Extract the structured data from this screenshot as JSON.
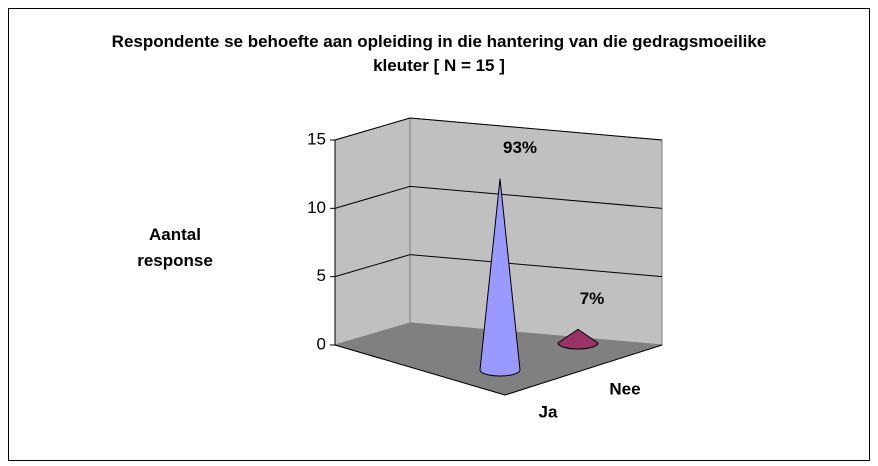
{
  "chart_data": {
    "type": "cone3d",
    "title": "Respondente se behoefte aan opleiding in die hantering van die gedragsmoeilike kleuter [ N = 15 ]",
    "y_label": "Aantal response",
    "categories": [
      "Ja",
      "Nee"
    ],
    "series": [
      {
        "name": "Aantal response",
        "colors": [
          "#9999ff",
          "#993366"
        ],
        "values": [
          14,
          1
        ],
        "value_labels": [
          "93%",
          "7%"
        ]
      }
    ],
    "ylim": [
      0,
      15
    ],
    "yticks": [
      0,
      5,
      10,
      15
    ],
    "grid": true
  }
}
